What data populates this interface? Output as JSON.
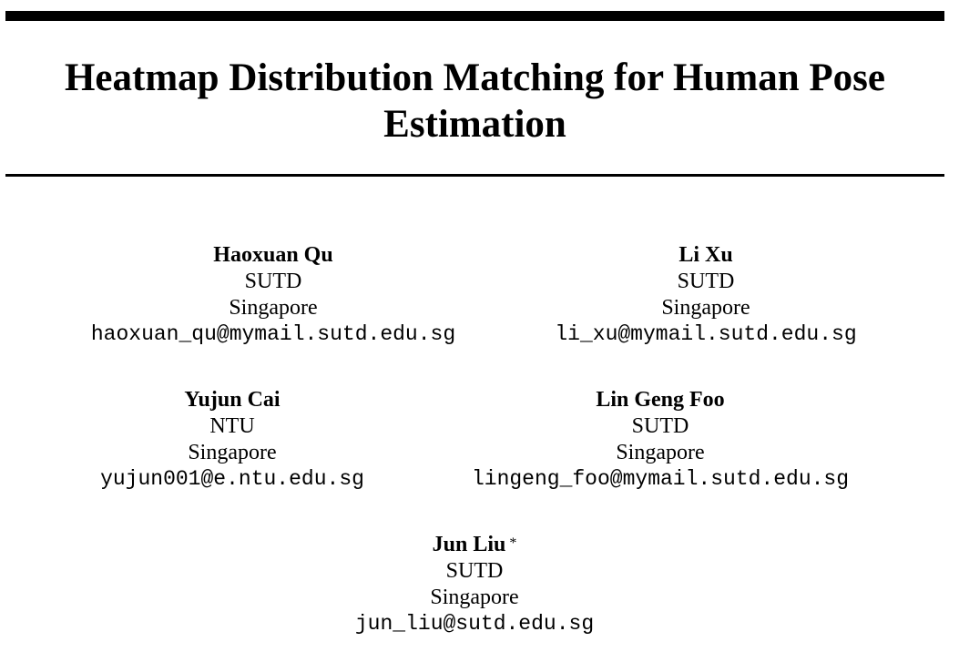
{
  "paper": {
    "title": "Heatmap Distribution Matching for Human Pose Estimation",
    "authors": [
      {
        "name": "Haoxuan Qu",
        "affiliation": "SUTD",
        "country": "Singapore",
        "email": "haoxuan_qu@mymail.sutd.edu.sg"
      },
      {
        "name": "Li Xu",
        "affiliation": "SUTD",
        "country": "Singapore",
        "email": "li_xu@mymail.sutd.edu.sg"
      },
      {
        "name": "Yujun Cai",
        "affiliation": "NTU",
        "country": "Singapore",
        "email": "yujun001@e.ntu.edu.sg"
      },
      {
        "name": "Lin Geng Foo",
        "affiliation": "SUTD",
        "country": "Singapore",
        "email": "lingeng_foo@mymail.sutd.edu.sg"
      },
      {
        "name": "Jun Liu",
        "mark": "*",
        "affiliation": "SUTD",
        "country": "Singapore",
        "email": "jun_liu@sutd.edu.sg"
      }
    ]
  }
}
